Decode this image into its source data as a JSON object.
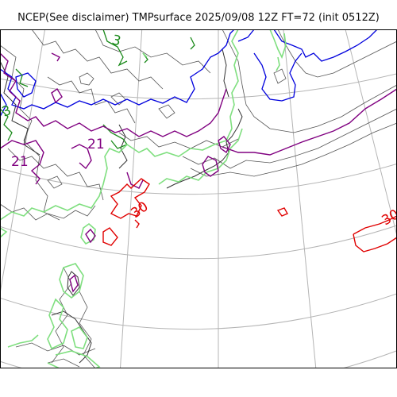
{
  "title": "NCEP(See disclaimer) TMPsurface 2025/09/08 12Z FT=72 (init 0512Z)",
  "contour_labels": [
    {
      "id": "label-3-north",
      "text": "3",
      "color": "#1a8a1a"
    },
    {
      "id": "label-3-west",
      "text": "3",
      "color": "#1a8a1a"
    },
    {
      "id": "label-21-central",
      "text": "21",
      "color": "#800080"
    },
    {
      "id": "label-21-west",
      "text": "21",
      "color": "#800080"
    },
    {
      "id": "label-30-central",
      "text": "30",
      "color": "#e00000"
    },
    {
      "id": "label-30-east",
      "text": "30",
      "color": "#e00000"
    }
  ],
  "colors": {
    "graticule": "#b4b4b4",
    "coastline": "#333333",
    "land_contour": "#888888",
    "isotherm_blue": "#0000dd",
    "isotherm_green": "#1a8a1a",
    "isotherm_lightgreen": "#7fdf7f",
    "isotherm_purple": "#800080",
    "isotherm_red": "#e00000"
  }
}
